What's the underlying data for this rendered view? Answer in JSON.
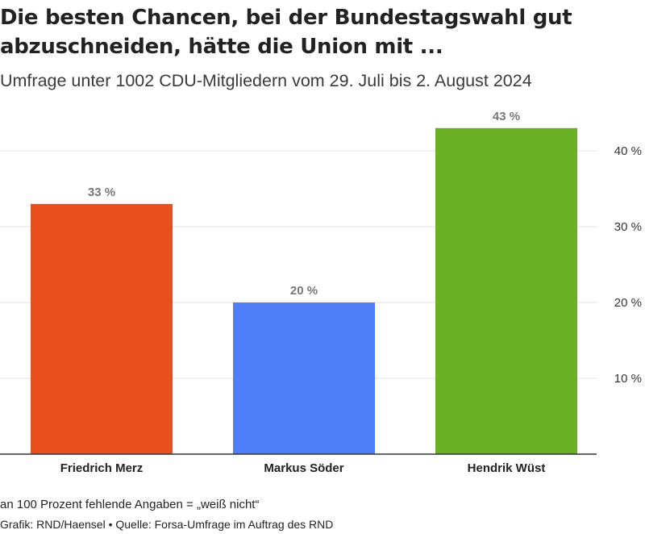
{
  "header": {
    "title": "Die besten Chancen, bei der Bundestagswahl gut abzuschneiden, hätte die Union mit ...",
    "subtitle": "Umfrage unter 1002 CDU-Mitgliedern vom 29. Juli bis 2. August 2024"
  },
  "chart_data": {
    "type": "bar",
    "categories": [
      "Friedrich Merz",
      "Markus Söder",
      "Hendrik Wüst"
    ],
    "values": [
      33,
      20,
      43
    ],
    "value_labels": [
      "33 %",
      "20 %",
      "43 %"
    ],
    "colors": [
      "#e8501f",
      "#4f7ef8",
      "#6ab024"
    ],
    "yticks": [
      10,
      20,
      30,
      40
    ],
    "ytick_labels": [
      "10 %",
      "20 %",
      "30 %",
      "40 %"
    ],
    "ylim": [
      0,
      43
    ],
    "y_axis_side": "right",
    "grid": true
  },
  "footer": {
    "note": "an 100 Prozent fehlende Angaben = „weiß nicht“",
    "source": "Grafik: RND/Haensel • Quelle: Forsa-Umfrage im Auftrag des RND"
  }
}
